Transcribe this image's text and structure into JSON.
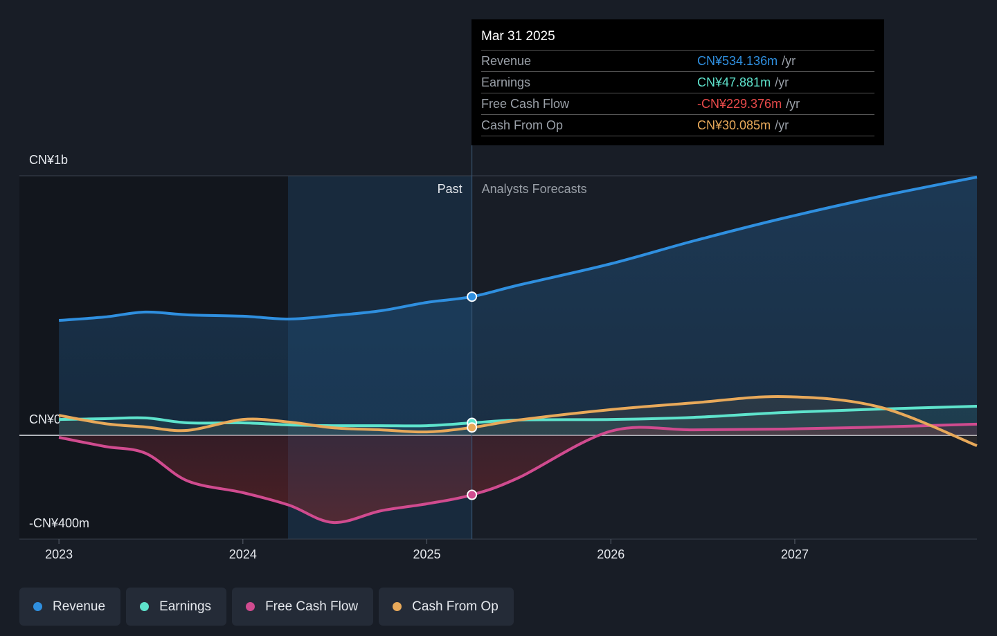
{
  "chart_data": {
    "type": "line",
    "x": [
      2023.0,
      2023.25,
      2023.47,
      2023.7,
      2024.0,
      2024.25,
      2024.49,
      2024.75,
      2025.0,
      2025.245,
      2025.5,
      2026.0,
      2026.45,
      2026.94,
      2027.46,
      2027.99
    ],
    "xlim": [
      2022.785,
      2027.99
    ],
    "xticks": [
      2023,
      2024,
      2025,
      2026,
      2027
    ],
    "ylim": [
      -400,
      1000
    ],
    "yticks": [
      {
        "value": 1000,
        "label": "CN¥1b"
      },
      {
        "value": 0,
        "label": "CN¥0"
      },
      {
        "value": -400,
        "label": "-CN¥400m"
      }
    ],
    "series": [
      {
        "name": "Revenue",
        "color": "#2f8fdf",
        "fill": true,
        "values": [
          442.7,
          456,
          475,
          464,
          459,
          448,
          461,
          480,
          512,
          534.136,
          579,
          661,
          749,
          837,
          920,
          995
        ]
      },
      {
        "name": "Earnings",
        "color": "#5ee3cc",
        "fill": false,
        "values": [
          61,
          64,
          67,
          48,
          48,
          40,
          37,
          37,
          37,
          47.881,
          59,
          61,
          69,
          88,
          101,
          112
        ]
      },
      {
        "name": "Free Cash Flow",
        "color": "#d04b8f",
        "fill": true,
        "values": [
          -8,
          -43,
          -69,
          -176,
          -221,
          -269,
          -336,
          -291,
          -264,
          -229.376,
          -163,
          16,
          21,
          24,
          32,
          43
        ]
      },
      {
        "name": "Cash From Op",
        "color": "#e8a95a",
        "fill": false,
        "values": [
          77,
          45,
          32,
          19,
          61,
          51,
          29,
          21,
          13,
          30.085,
          59,
          99,
          125,
          149,
          109,
          -40
        ]
      }
    ],
    "past_label": "Past",
    "forecast_label": "Analysts Forecasts",
    "tooltip": {
      "title": "Mar 31 2025",
      "suffix": "/yr",
      "rows": [
        {
          "label": "Revenue",
          "value": 534.136,
          "value_label": "CN¥534.136m",
          "color": "#2f8fdf"
        },
        {
          "label": "Earnings",
          "value": 47.881,
          "value_label": "CN¥47.881m",
          "color": "#5ee3cc"
        },
        {
          "label": "Free Cash Flow",
          "value": -229.376,
          "value_label": "-CN¥229.376m",
          "color": "#e84a4a"
        },
        {
          "label": "Cash From Op",
          "value": 30.085,
          "value_label": "CN¥30.085m",
          "color": "#e8a95a"
        }
      ]
    }
  }
}
